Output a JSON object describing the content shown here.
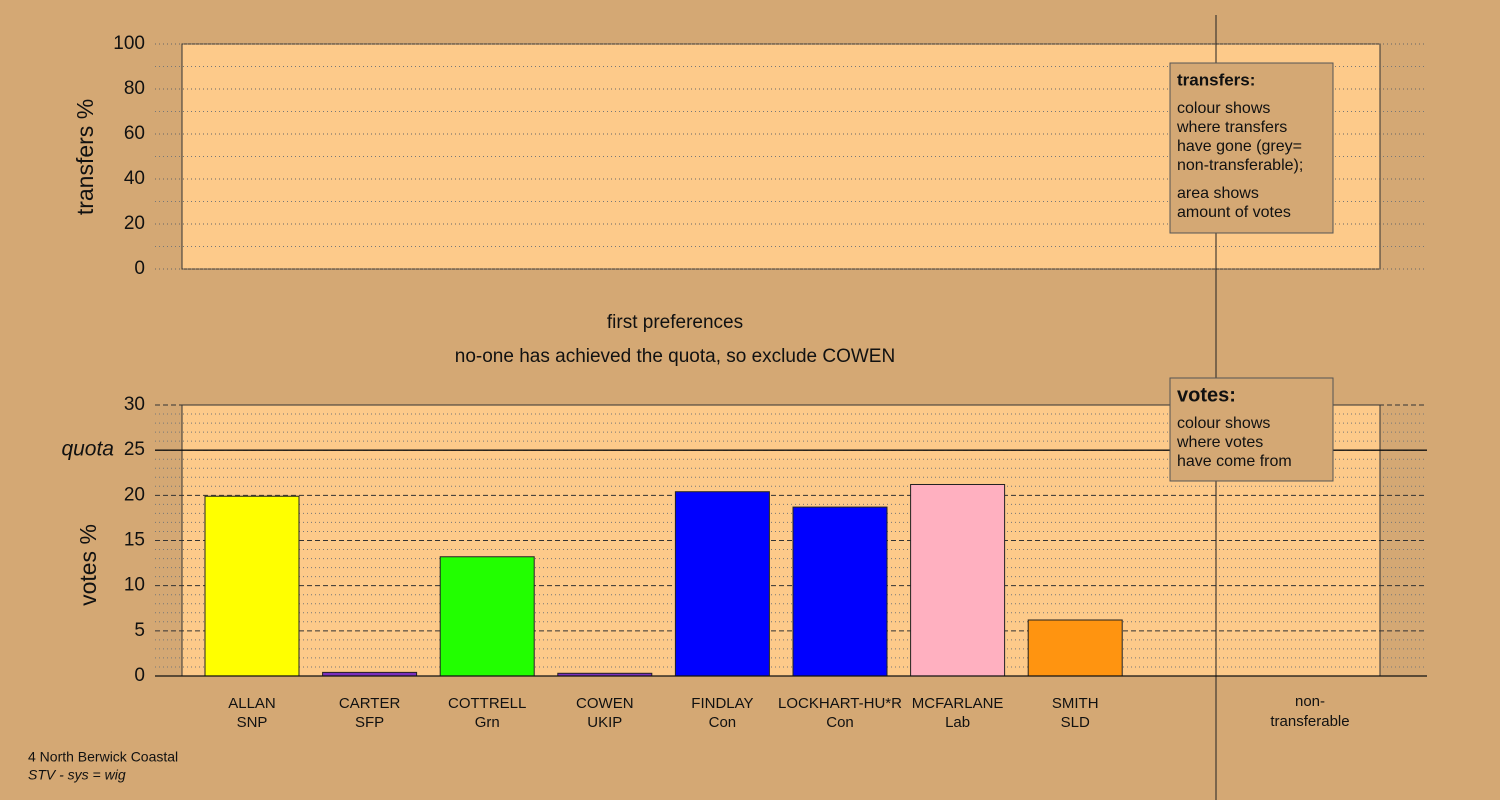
{
  "chart_data": [
    {
      "type": "bar",
      "ylabel": "transfers %",
      "ylim": [
        0,
        100
      ],
      "yticks": [
        0,
        20,
        40,
        60,
        80,
        100
      ],
      "minor_grid_step": 10,
      "legend": {
        "title": "transfers:",
        "paragraphs": [
          [
            "colour shows",
            "where transfers",
            "have gone (grey=",
            "non-transferable);"
          ],
          [
            "area shows",
            "amount of votes"
          ]
        ]
      }
    },
    {
      "type": "bar",
      "title": "first preferences",
      "subtitle": "no-one has achieved the quota, so exclude COWEN",
      "ylabel": "votes %",
      "ylim": [
        0,
        30
      ],
      "yticks": [
        0,
        5,
        10,
        15,
        20,
        25,
        30
      ],
      "minor_grid_step": 1,
      "quota": 25,
      "quota_label": "quota",
      "categories": [
        "ALLAN",
        "CARTER",
        "COTTRELL",
        "COWEN",
        "FINDLAY",
        "LOCKHART-HU*R",
        "MCFARLANE",
        "SMITH"
      ],
      "parties": [
        "SNP",
        "SFP",
        "Grn",
        "UKIP",
        "Con",
        "Con",
        "Lab",
        "SLD"
      ],
      "values": [
        19.9,
        0.4,
        13.2,
        0.3,
        20.4,
        18.7,
        21.2,
        6.2
      ],
      "colors": [
        "#ffff00",
        "#7b2fbe",
        "#22ff00",
        "#7b2fbe",
        "#0000ff",
        "#0000ff",
        "#ffb0c0",
        "#ff9410"
      ],
      "extra_category": [
        "non-",
        "transferable"
      ],
      "legend": {
        "title": "votes:",
        "paragraphs": [
          [
            "colour shows",
            "where votes",
            "have come from"
          ]
        ]
      }
    }
  ],
  "footer": {
    "ward": "4 North Berwick Coastal",
    "system": "STV - sys = wig"
  }
}
